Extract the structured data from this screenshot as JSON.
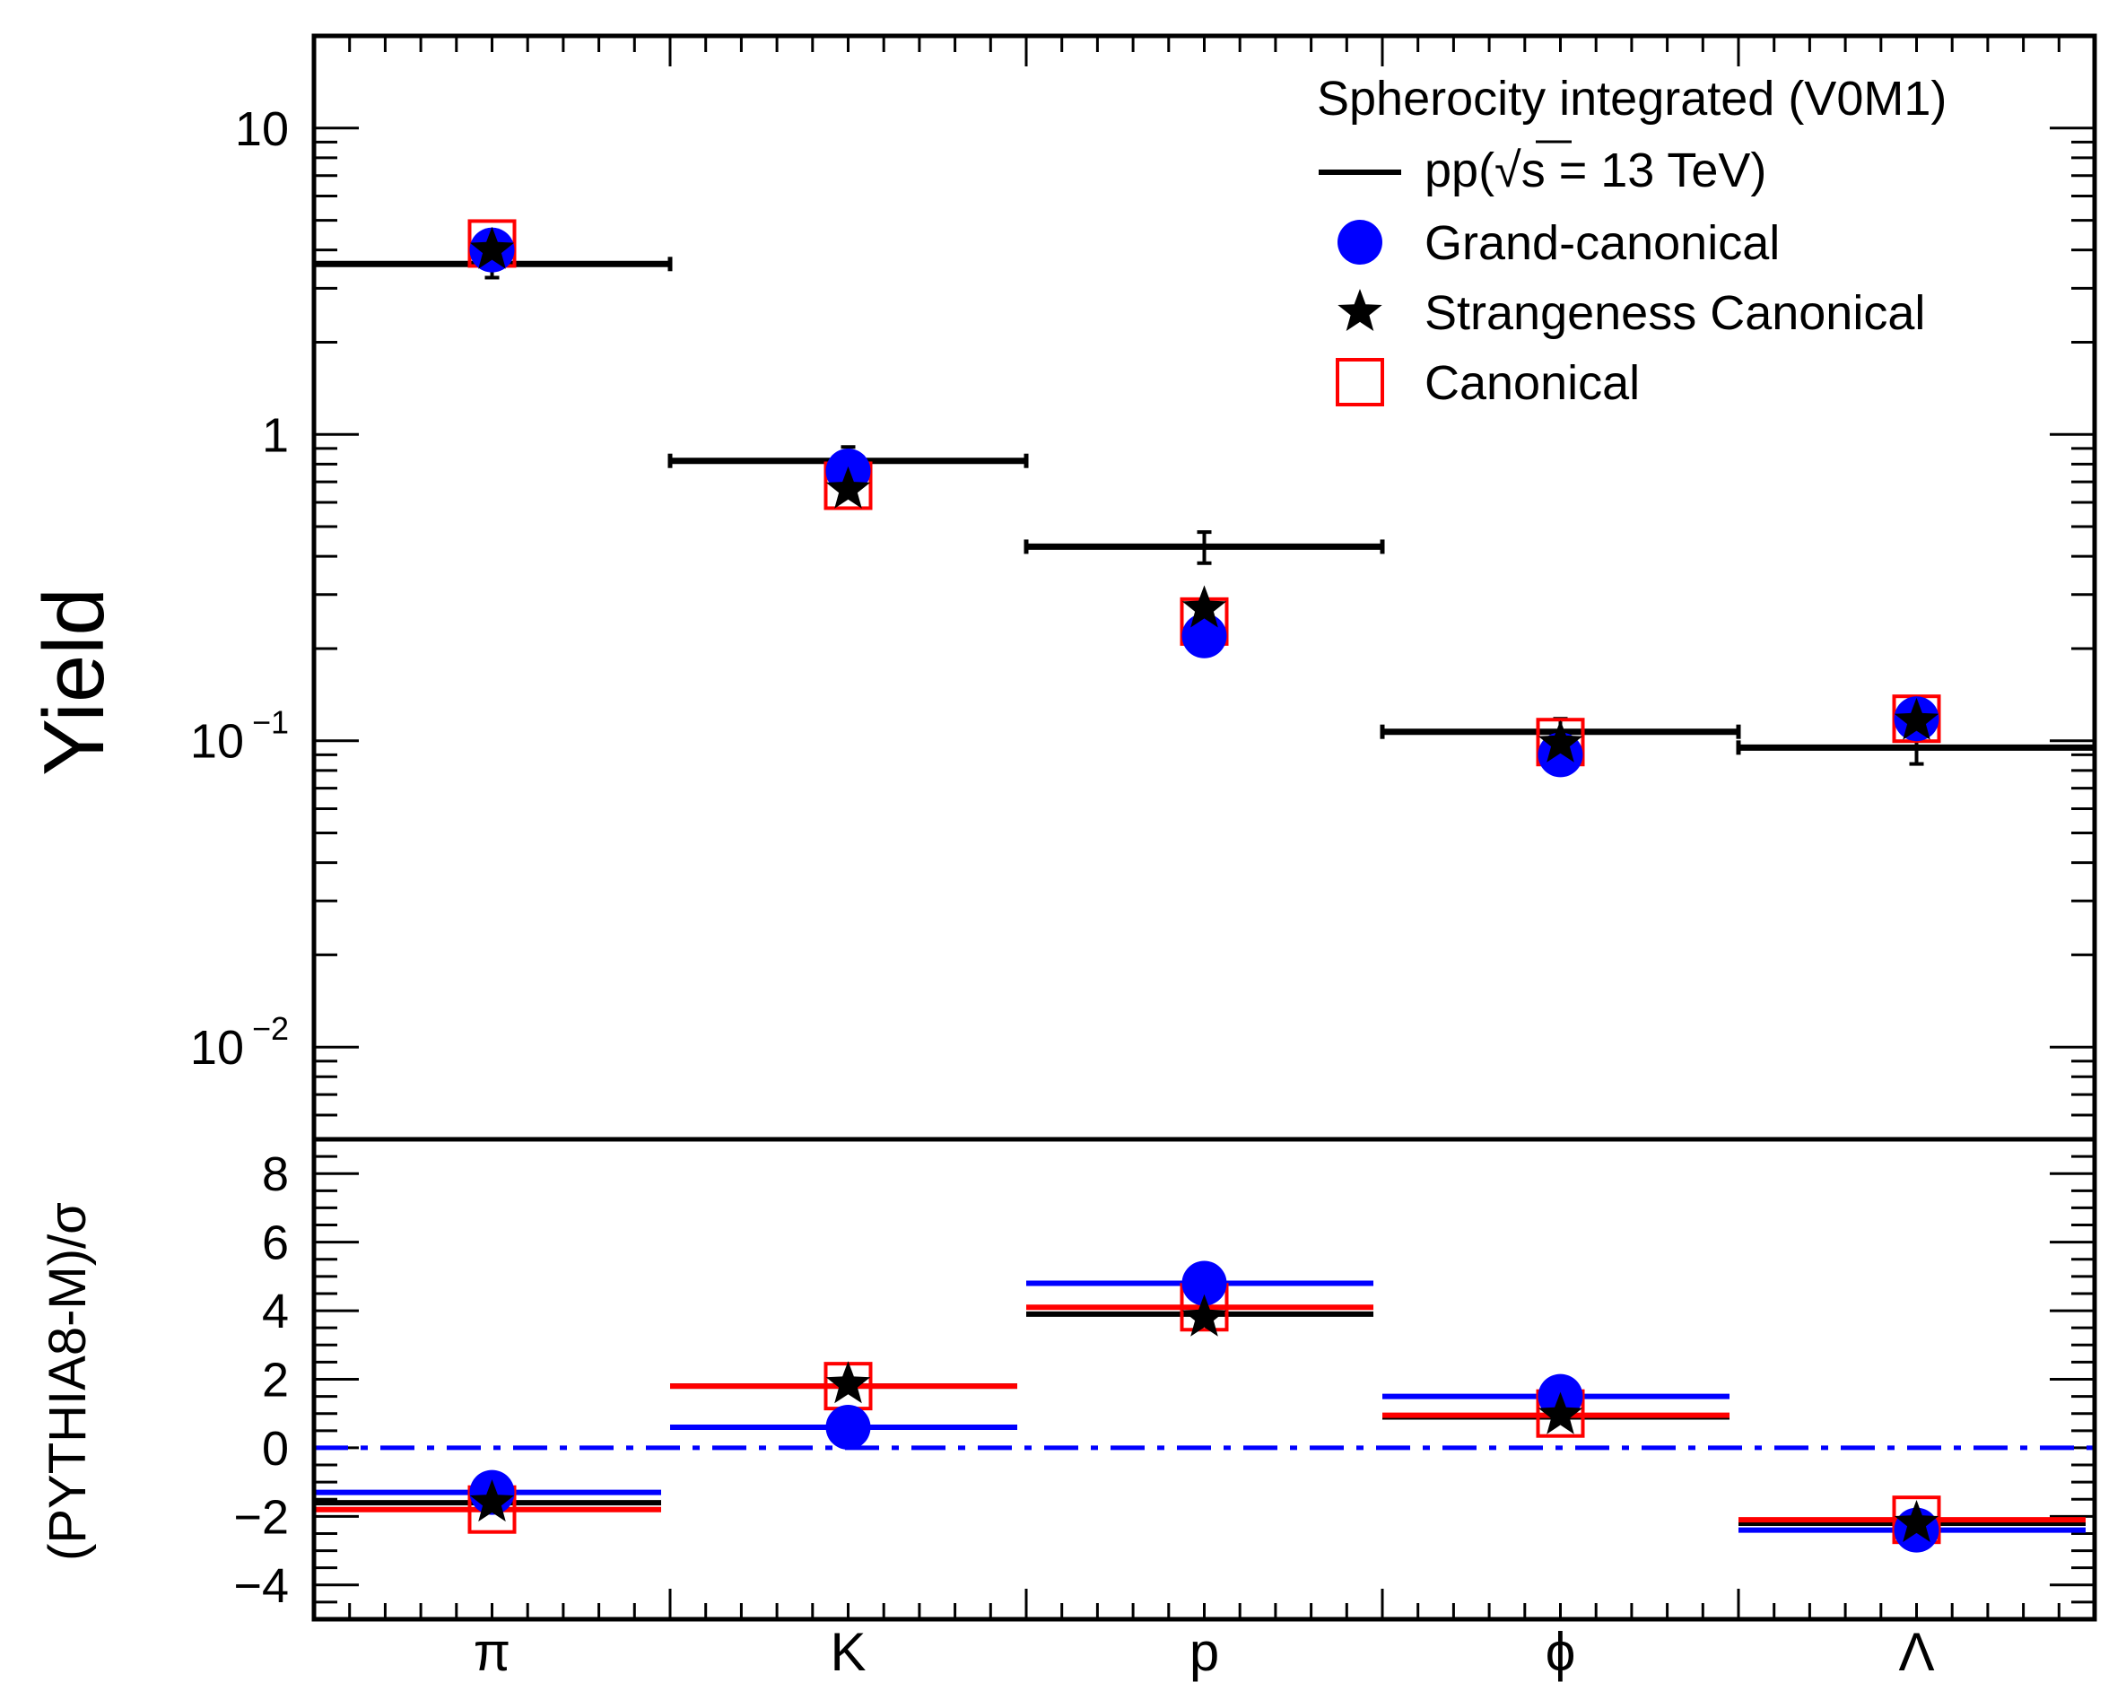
{
  "chart_data": [
    {
      "type": "scatter",
      "title": "",
      "ylabel": "Yield",
      "yscale": "log",
      "ylim": [
        0.005,
        20
      ],
      "yticks": [
        {
          "value": 10,
          "base": "10",
          "exp": ""
        },
        {
          "value": 1,
          "base": "1",
          "exp": ""
        },
        {
          "value": 0.1,
          "base": "10",
          "exp": "−1"
        },
        {
          "value": 0.01,
          "base": "10",
          "exp": "−2"
        }
      ],
      "categories": [
        "π",
        "K",
        "p",
        "ϕ",
        "Λ"
      ],
      "legend": {
        "header": "Spherocity integrated (V0M1)",
        "data_label_pre": "pp(",
        "data_label_sqrt": "√",
        "data_label_post": "s = 13 TeV)",
        "position": "top-right"
      },
      "data": {
        "name": "pp(√s = 13 TeV)",
        "values": [
          3.6,
          0.82,
          0.43,
          0.107,
          0.095
        ],
        "errors": [
          0.35,
          0.09,
          0.05,
          0.011,
          0.011
        ]
      },
      "series": [
        {
          "name": "Grand-canonical",
          "marker": "circle",
          "color": "#0000ff",
          "values": [
            4.0,
            0.76,
            0.22,
            0.09,
            0.118
          ]
        },
        {
          "name": "Strangeness Canonical",
          "marker": "star",
          "color": "#000000",
          "values": [
            4.0,
            0.66,
            0.27,
            0.098,
            0.116
          ]
        },
        {
          "name": "Canonical",
          "marker": "open-square",
          "color": "#ff0000",
          "values": [
            4.2,
            0.68,
            0.245,
            0.099,
            0.118
          ]
        }
      ]
    },
    {
      "type": "line",
      "ylabel": "(PYTHIA8-M)/σ",
      "ylim": [
        -5,
        9
      ],
      "yticks": [
        "−4",
        "−2",
        "0",
        "2",
        "4",
        "6",
        "8"
      ],
      "ytick_values": [
        -4,
        -2,
        0,
        2,
        4,
        6,
        8
      ],
      "categories": [
        "π",
        "K",
        "p",
        "ϕ",
        "Λ"
      ],
      "reference_line": {
        "value": 0,
        "style": "dash-dot",
        "color": "#0000ff"
      },
      "series": [
        {
          "name": "Grand-canonical",
          "marker": "circle",
          "color": "#0000ff",
          "values": [
            -1.3,
            0.6,
            4.8,
            1.5,
            -2.4
          ],
          "line_values": [
            -1.3,
            0.6,
            4.8,
            1.5,
            -2.4
          ]
        },
        {
          "name": "Strangeness Canonical",
          "marker": "star",
          "color": "#000000",
          "values": [
            -1.6,
            1.85,
            3.8,
            0.95,
            -2.2
          ],
          "line_values": [
            -1.6,
            1.8,
            3.9,
            0.9,
            -2.2
          ]
        },
        {
          "name": "Canonical",
          "marker": "open-square",
          "color": "#ff0000",
          "values": [
            -1.8,
            1.8,
            4.1,
            1.0,
            -2.1
          ],
          "line_values": [
            -1.8,
            1.8,
            4.1,
            0.95,
            -2.1
          ]
        }
      ]
    }
  ]
}
